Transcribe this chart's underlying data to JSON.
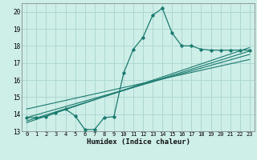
{
  "title": "",
  "xlabel": "Humidex (Indice chaleur)",
  "bg_color": "#ceeee8",
  "grid_color": "#aed8d2",
  "line_color": "#1a7a6e",
  "xlim": [
    -0.5,
    23.5
  ],
  "ylim": [
    13,
    20.5
  ],
  "yticks": [
    13,
    14,
    15,
    16,
    17,
    18,
    19,
    20
  ],
  "curve1_x": [
    0,
    1,
    2,
    3,
    4,
    5,
    6,
    7,
    8,
    9,
    10,
    11,
    12,
    13,
    14,
    15,
    16,
    17,
    18,
    19,
    20,
    21,
    22,
    23
  ],
  "curve1_y": [
    13.8,
    13.8,
    13.85,
    14.1,
    14.3,
    13.9,
    13.1,
    13.1,
    13.8,
    13.85,
    16.4,
    17.8,
    18.5,
    19.8,
    20.2,
    18.75,
    18.0,
    18.0,
    17.8,
    17.75,
    17.75,
    17.75,
    17.75,
    17.75
  ],
  "line1_x": [
    0,
    23
  ],
  "line1_y": [
    13.5,
    17.9
  ],
  "line2_x": [
    0,
    23
  ],
  "line2_y": [
    13.6,
    17.7
  ],
  "line3_x": [
    0,
    23
  ],
  "line3_y": [
    13.8,
    17.5
  ],
  "line4_x": [
    0,
    23
  ],
  "line4_y": [
    14.3,
    17.2
  ]
}
